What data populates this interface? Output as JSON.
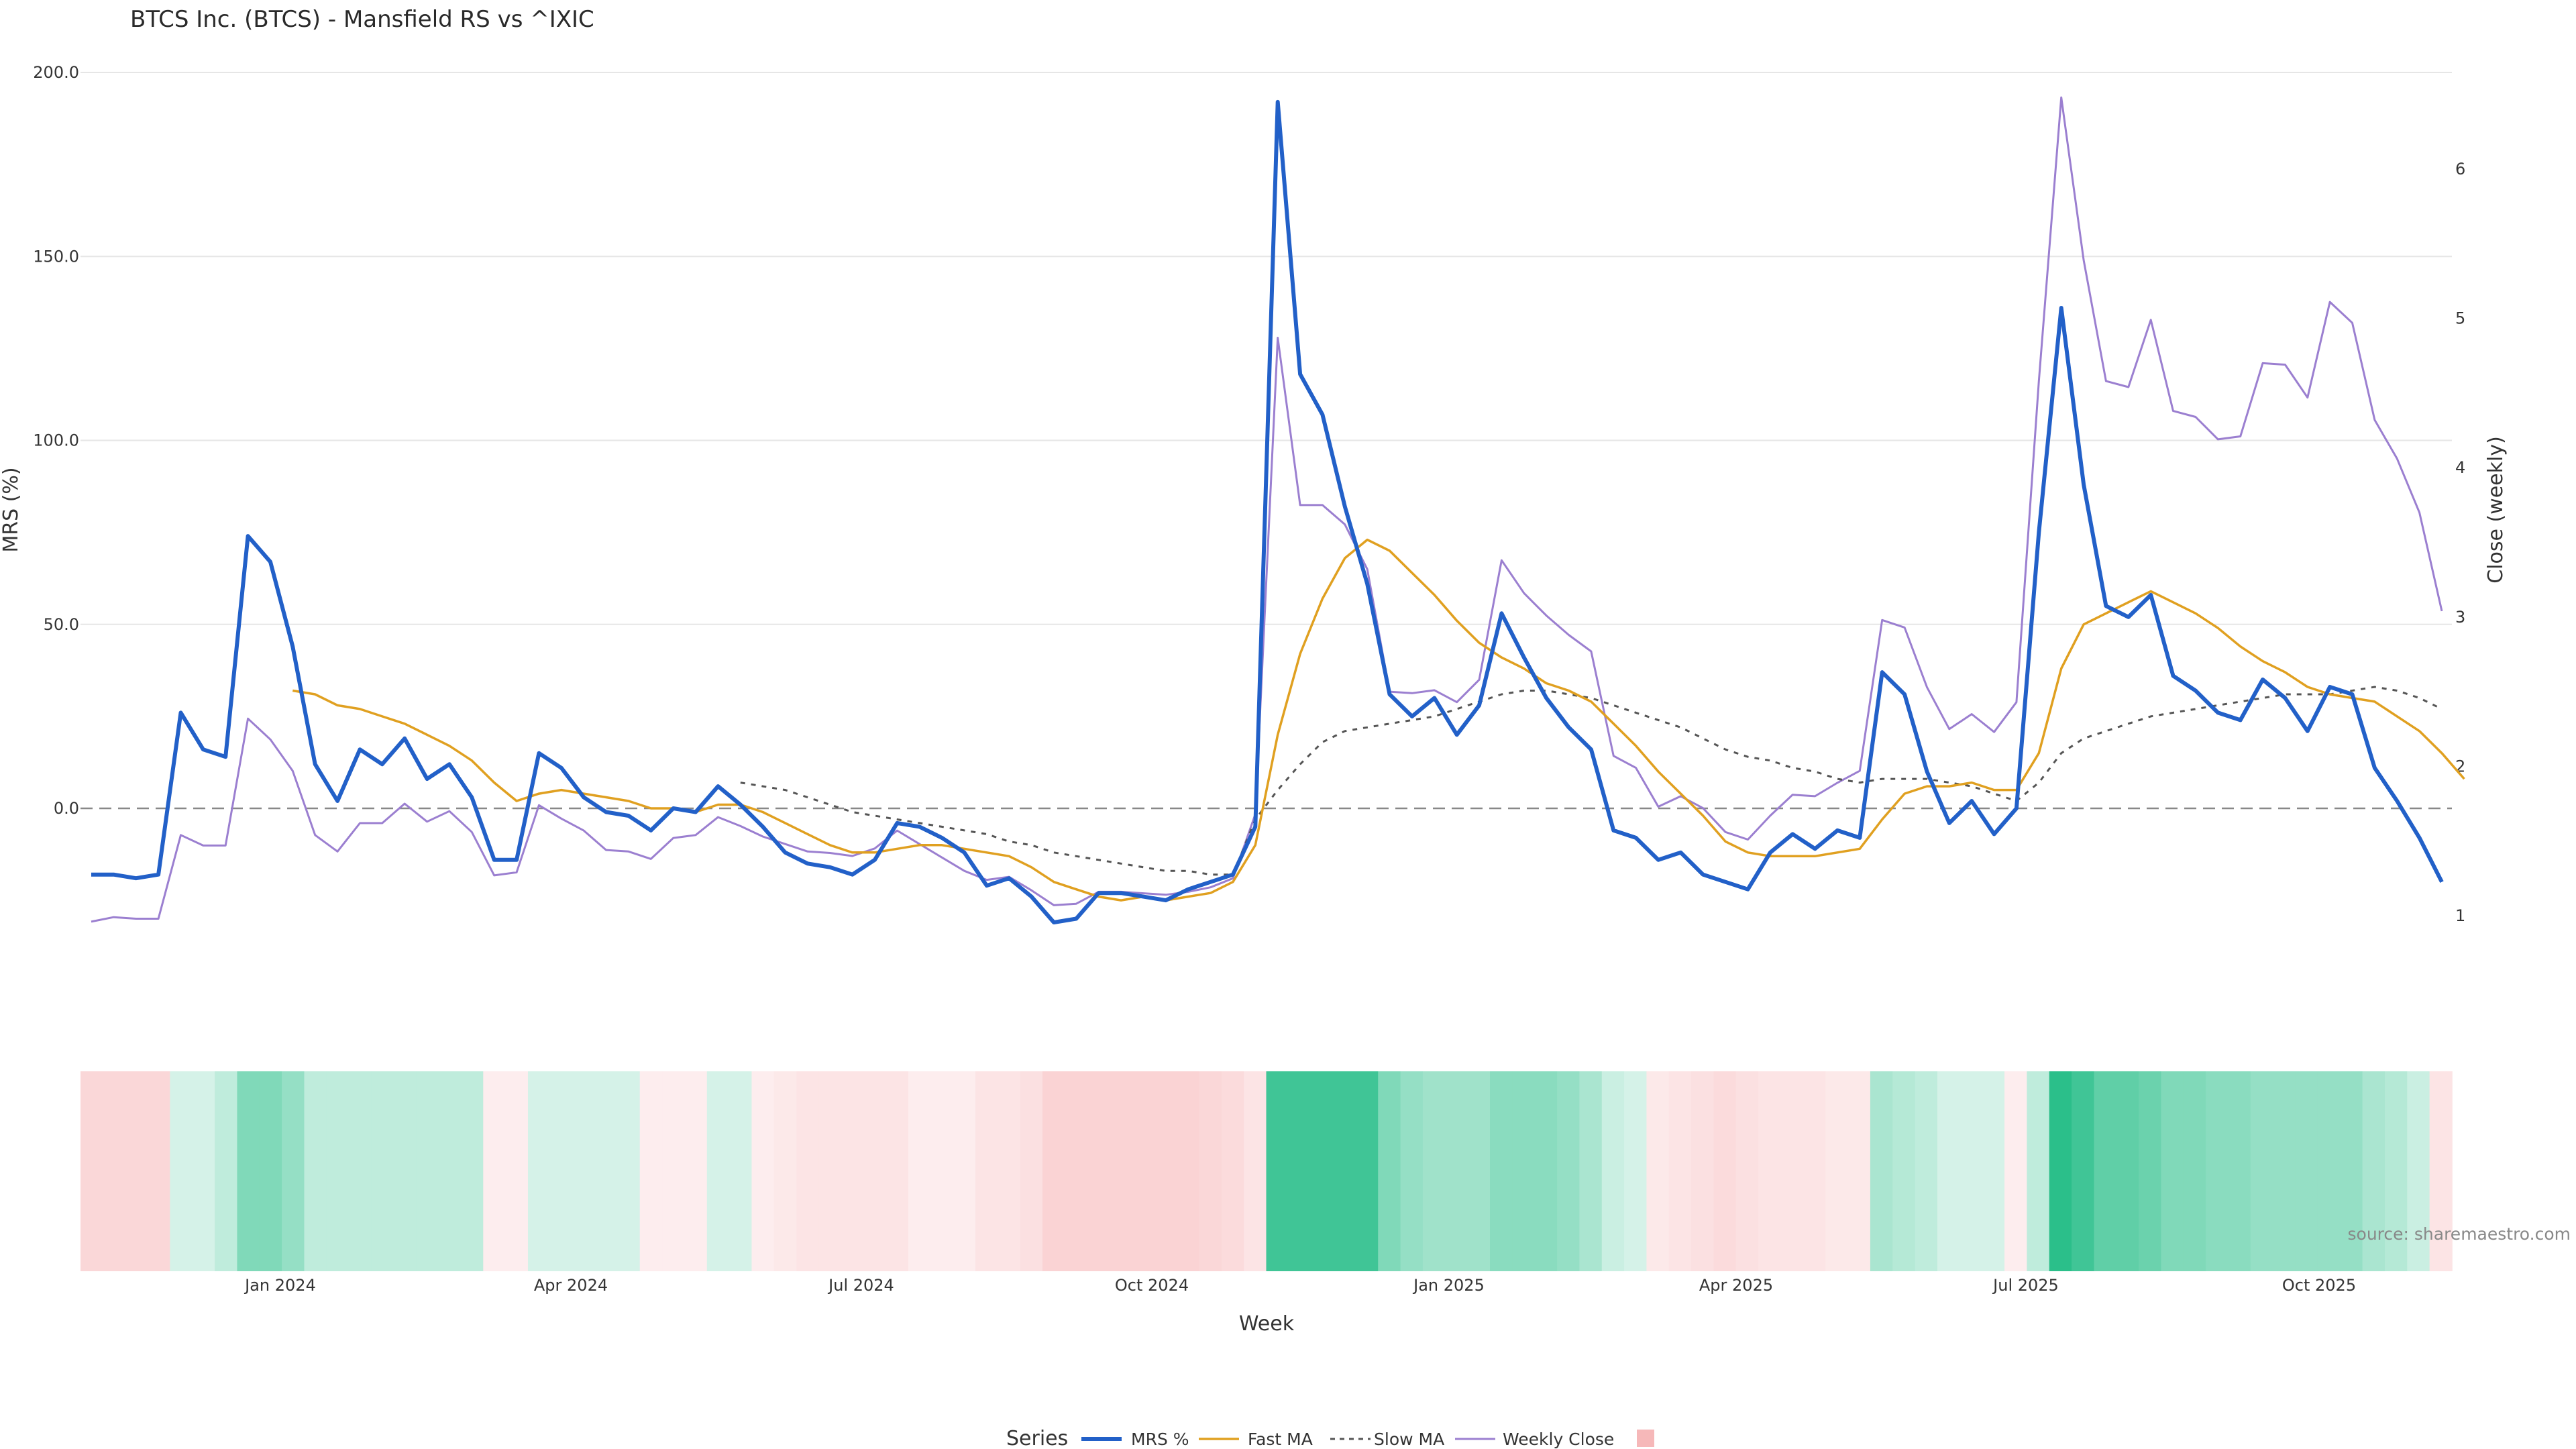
{
  "chart_data": {
    "type": "line",
    "title": "BTCS Inc. (BTCS) - Mansfield RS vs ^IXIC",
    "xlabel": "Week",
    "ylabel_left": "MRS (%)",
    "ylabel_right": "Close (weekly)",
    "y_left_ticks": [
      "0.0",
      "50.0",
      "100.0",
      "150.0",
      "200.0"
    ],
    "y_right_ticks": [
      "1",
      "2",
      "3",
      "4",
      "5",
      "6"
    ],
    "x_tick_labels": [
      "Jan 2024",
      "Apr 2024",
      "Jul 2024",
      "Oct 2024",
      "Jan 2025",
      "Apr 2025",
      "Jul 2025",
      "Oct 2025"
    ],
    "ylim_left": [
      -40,
      200
    ],
    "ylim_right": [
      0.8,
      6.6
    ],
    "grid": true,
    "zero_line": "dashed",
    "legend": {
      "title": "Series",
      "placement": "bottom-center",
      "items": [
        "MRS %",
        "Fast MA",
        "Slow MA",
        "Weekly Close",
        ""
      ]
    },
    "source": "source: sharemaestro.com",
    "colors": {
      "mrs": "#2260c8",
      "fast_ma": "#e0a020",
      "slow_ma": "#555555",
      "weekly_close": "#9b7fd0",
      "heat_negative": "#f4a6a8",
      "heat_positive": "#2bbf8a"
    },
    "series": [
      {
        "name": "MRS %",
        "axis": "left",
        "values": [
          -18,
          -18,
          -19,
          -18,
          26,
          16,
          14,
          74,
          67,
          44,
          12,
          2,
          16,
          12,
          19,
          8,
          12,
          3,
          -14,
          -14,
          15,
          11,
          3,
          -1,
          -2,
          -6,
          0,
          -1,
          6,
          1,
          -5,
          -12,
          -15,
          -16,
          -18,
          -14,
          -4,
          -5,
          -8,
          -12,
          -21,
          -19,
          -24,
          -31,
          -30,
          -23,
          -23,
          -24,
          -25,
          -22,
          -20,
          -18,
          -5,
          192,
          118,
          107,
          82,
          61,
          31,
          25,
          30,
          20,
          28,
          53,
          41,
          30,
          22,
          16,
          -6,
          -8,
          -14,
          -12,
          -18,
          -20,
          -22,
          -12,
          -7,
          -11,
          -6,
          -8,
          37,
          31,
          10,
          -4,
          2,
          -7,
          0,
          75,
          136,
          88,
          55,
          52,
          58,
          36,
          32,
          26,
          24,
          35,
          30,
          21,
          33,
          31,
          11,
          2,
          -8,
          -20
        ]
      },
      {
        "name": "Fast MA",
        "axis": "left",
        "values": [
          null,
          null,
          null,
          null,
          null,
          null,
          null,
          null,
          null,
          32,
          31,
          28,
          27,
          25,
          23,
          20,
          17,
          13,
          7,
          2,
          4,
          5,
          4,
          3,
          2,
          0,
          0,
          -1,
          1,
          1,
          -1,
          -4,
          -7,
          -10,
          -12,
          -12,
          -11,
          -10,
          -10,
          -11,
          -12,
          -13,
          -16,
          -20,
          -22,
          -24,
          -25,
          -24,
          -25,
          -24,
          -23,
          -20,
          -10,
          20,
          42,
          57,
          68,
          73,
          70,
          64,
          58,
          51,
          45,
          41,
          38,
          34,
          32,
          29,
          23,
          17,
          10,
          4,
          -2,
          -9,
          -12,
          -13,
          -13,
          -13,
          -12,
          -11,
          -3,
          4,
          6,
          6,
          7,
          5,
          5,
          15,
          38,
          50,
          53,
          56,
          59,
          56,
          53,
          49,
          44,
          40,
          37,
          33,
          31,
          30,
          29,
          25,
          21,
          15,
          8
        ]
      },
      {
        "name": "Slow MA",
        "axis": "left",
        "values": [
          null,
          null,
          null,
          null,
          null,
          null,
          null,
          null,
          null,
          null,
          null,
          null,
          null,
          null,
          null,
          null,
          null,
          null,
          null,
          null,
          null,
          null,
          null,
          null,
          null,
          null,
          null,
          null,
          null,
          7,
          6,
          5,
          3,
          1,
          -1,
          -2,
          -3,
          -4,
          -5,
          -6,
          -7,
          -9,
          -10,
          -12,
          -13,
          -14,
          -15,
          -16,
          -17,
          -17,
          -18,
          -18,
          -3,
          5,
          12,
          18,
          21,
          22,
          23,
          24,
          25,
          27,
          29,
          31,
          32,
          32,
          31,
          30,
          28,
          26,
          24,
          22,
          19,
          16,
          14,
          13,
          11,
          10,
          8,
          7,
          8,
          8,
          8,
          7,
          6,
          4,
          2,
          7,
          15,
          19,
          21,
          23,
          25,
          26,
          27,
          28,
          29,
          30,
          31,
          31,
          31,
          32,
          33,
          32,
          30,
          27
        ]
      },
      {
        "name": "Weekly Close",
        "axis": "right",
        "values": [
          0.96,
          0.99,
          0.98,
          0.98,
          1.54,
          1.47,
          1.47,
          2.32,
          2.18,
          1.97,
          1.54,
          1.43,
          1.62,
          1.62,
          1.75,
          1.63,
          1.7,
          1.56,
          1.27,
          1.29,
          1.74,
          1.65,
          1.57,
          1.44,
          1.43,
          1.38,
          1.52,
          1.54,
          1.66,
          1.6,
          1.53,
          1.48,
          1.43,
          1.42,
          1.4,
          1.45,
          1.57,
          1.48,
          1.39,
          1.3,
          1.24,
          1.26,
          1.17,
          1.07,
          1.08,
          1.16,
          1.16,
          1.15,
          1.14,
          1.16,
          1.19,
          1.25,
          1.68,
          4.87,
          3.75,
          3.75,
          3.62,
          3.32,
          2.5,
          2.49,
          2.51,
          2.43,
          2.58,
          3.38,
          3.16,
          3.01,
          2.88,
          2.77,
          2.07,
          1.99,
          1.73,
          1.8,
          1.72,
          1.56,
          1.51,
          1.67,
          1.81,
          1.8,
          1.89,
          1.97,
          2.98,
          2.93,
          2.53,
          2.25,
          2.35,
          2.23,
          2.43,
          4.58,
          6.48,
          5.39,
          4.58,
          4.54,
          4.99,
          4.38,
          4.34,
          4.19,
          4.21,
          4.7,
          4.69,
          4.47,
          5.11,
          4.97,
          4.32,
          4.06,
          3.7,
          3.04
        ]
      }
    ],
    "heatmap_bands": [
      -0.45,
      -0.45,
      -0.45,
      -0.45,
      0.1,
      0.2,
      0.3,
      0.6,
      0.6,
      0.5,
      0.3,
      0.3,
      0.3,
      0.3,
      0.3,
      0.3,
      0.3,
      0.3,
      -0.2,
      -0.2,
      0.2,
      0.2,
      0.2,
      0.2,
      0.2,
      -0.2,
      -0.2,
      -0.2,
      0.2,
      0.2,
      -0.2,
      -0.25,
      -0.3,
      -0.3,
      -0.3,
      -0.3,
      -0.3,
      -0.2,
      -0.2,
      -0.2,
      -0.3,
      -0.3,
      -0.35,
      -0.5,
      -0.5,
      -0.5,
      -0.5,
      -0.5,
      -0.5,
      -0.5,
      -0.45,
      -0.4,
      -0.3,
      0.9,
      0.9,
      0.9,
      0.9,
      0.9,
      0.6,
      0.5,
      0.45,
      0.45,
      0.45,
      0.55,
      0.55,
      0.55,
      0.5,
      0.4,
      0.25,
      0.2,
      -0.25,
      -0.3,
      -0.35,
      -0.4,
      -0.35,
      -0.3,
      -0.3,
      -0.3,
      -0.25,
      -0.25,
      0.4,
      0.35,
      0.3,
      0.2,
      0.2,
      0.15,
      -0.2,
      0.3,
      1.0,
      0.9,
      0.75,
      0.75,
      0.7,
      0.6,
      0.6,
      0.55,
      0.55,
      0.5,
      0.5,
      0.5,
      0.5,
      0.5,
      0.4,
      0.35,
      0.25,
      -0.3
    ]
  }
}
